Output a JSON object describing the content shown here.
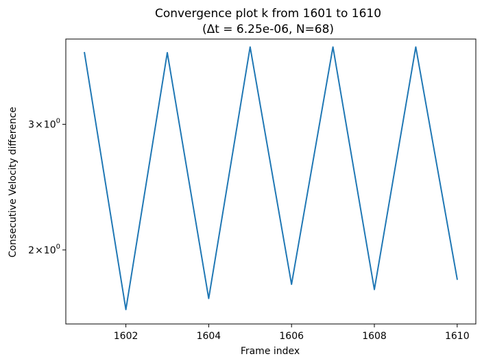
{
  "chart_data": {
    "type": "line",
    "title_line1": "Convergence plot k from 1601 to 1610",
    "title_line2": "(Δt = 6.25e-06, N=68)",
    "xlabel": "Frame index",
    "ylabel": "Consecutive Velocity difference",
    "yscale": "log",
    "xlim": [
      1600.55,
      1610.45
    ],
    "ylim": [
      1.575,
      3.95
    ],
    "grid": false,
    "x_ticks": [
      {
        "value": 1602,
        "label": "1602"
      },
      {
        "value": 1604,
        "label": "1604"
      },
      {
        "value": 1606,
        "label": "1606"
      },
      {
        "value": 1608,
        "label": "1608"
      },
      {
        "value": 1610,
        "label": "1610"
      }
    ],
    "y_ticks": [
      {
        "value": 2,
        "base": "2",
        "sym": "×",
        "pow": "10",
        "exp": "0"
      },
      {
        "value": 3,
        "base": "3",
        "sym": "×",
        "pow": "10",
        "exp": "0"
      }
    ],
    "series": [
      {
        "color": "#1f77b4",
        "x": [
          1601,
          1602,
          1603,
          1604,
          1605,
          1606,
          1607,
          1608,
          1609,
          1610
        ],
        "y": [
          3.78,
          1.65,
          3.78,
          1.71,
          3.85,
          1.79,
          3.85,
          1.76,
          3.85,
          1.82
        ]
      }
    ]
  }
}
